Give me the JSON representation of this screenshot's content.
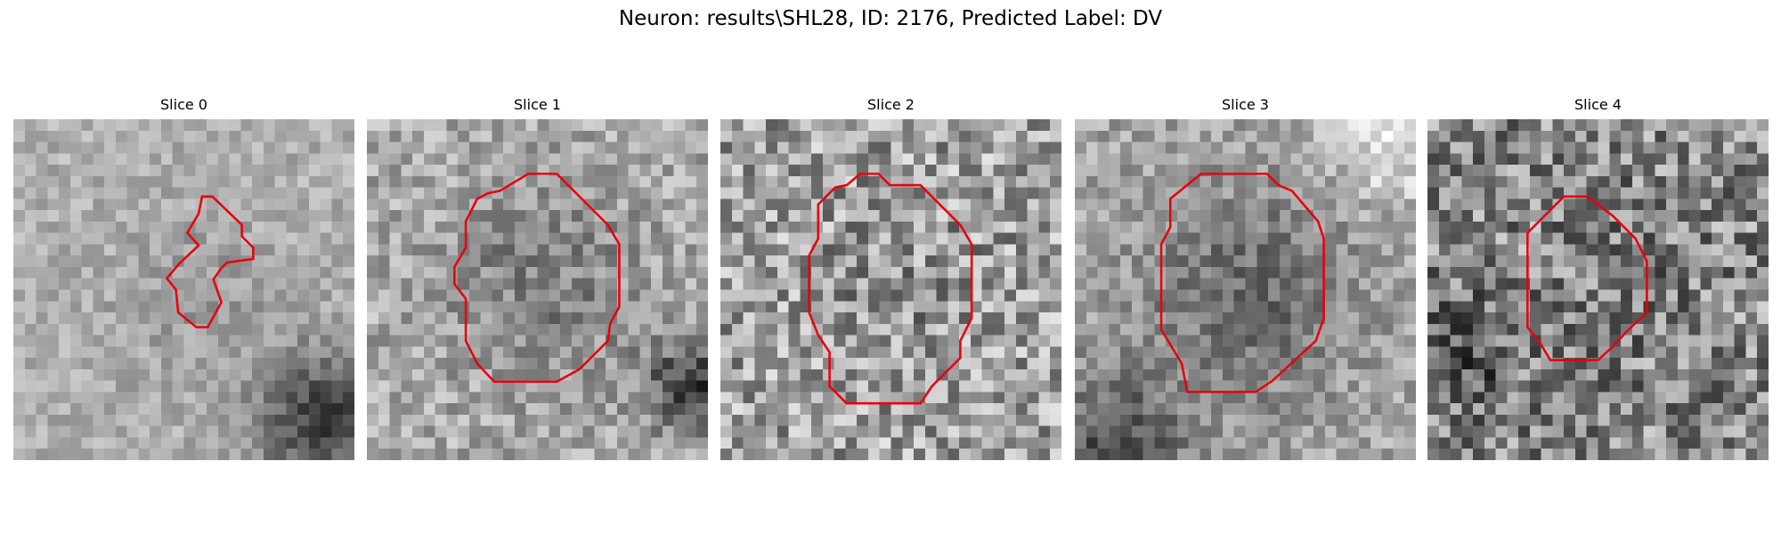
{
  "title": "Neuron: results\\SHL28, ID: 2176, Predicted Label: DV",
  "panels": [
    {
      "label": "Slice 0"
    },
    {
      "label": "Slice 1"
    },
    {
      "label": "Slice 2"
    },
    {
      "label": "Slice 3"
    },
    {
      "label": "Slice 4"
    }
  ]
}
